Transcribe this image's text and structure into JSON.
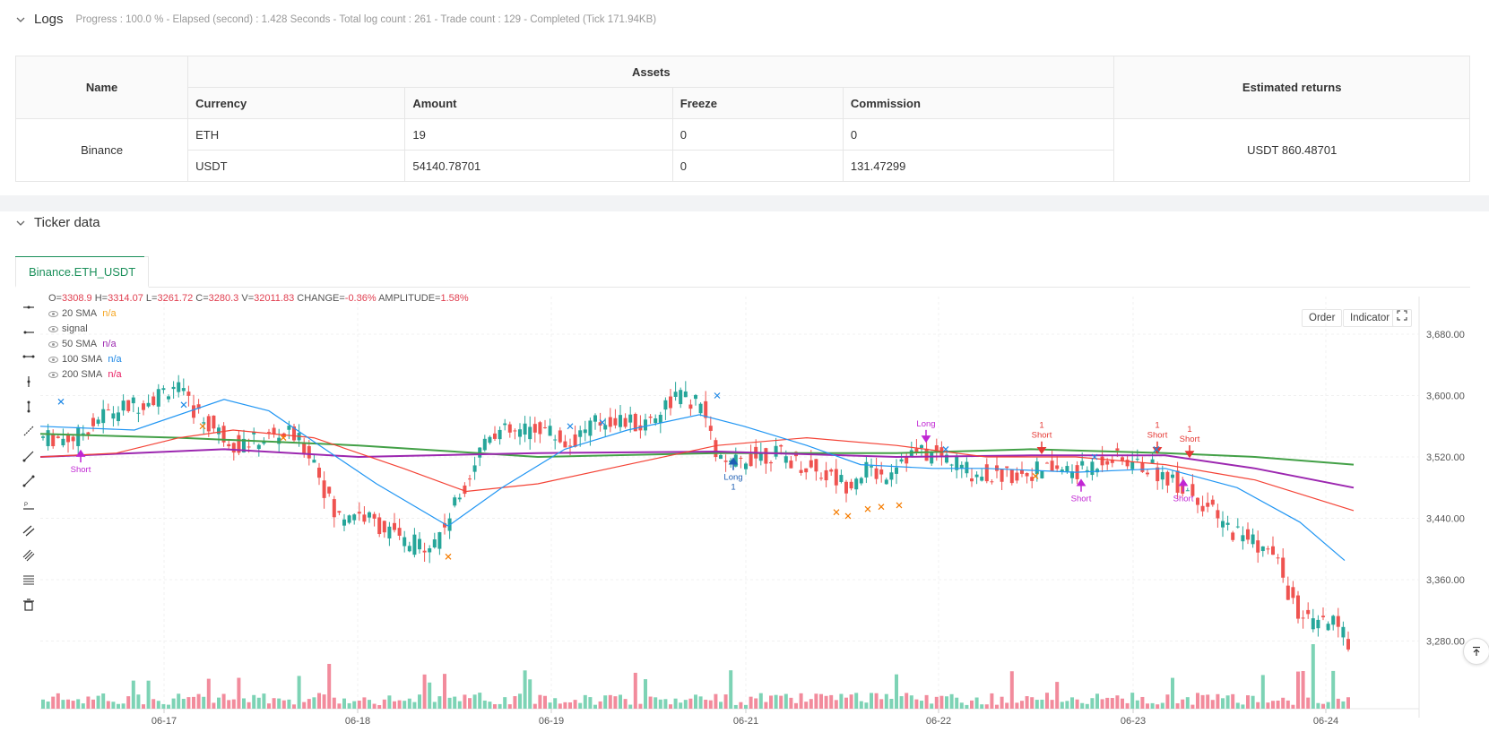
{
  "logs": {
    "title": "Logs",
    "info": "Progress : 100.0 % - Elapsed (second) : 1.428  Seconds - Total log count : 261 - Trade count : 129 - Completed (Tick 171.94KB)"
  },
  "assets_table": {
    "headers": {
      "name": "Name",
      "assets": "Assets",
      "estimated": "Estimated returns",
      "currency": "Currency",
      "amount": "Amount",
      "freeze": "Freeze",
      "commission": "Commission"
    },
    "exchange": "Binance",
    "rows": [
      {
        "currency": "ETH",
        "amount": "19",
        "freeze": "0",
        "commission": "0"
      },
      {
        "currency": "USDT",
        "amount": "54140.78701",
        "freeze": "0",
        "commission": "131.47299"
      }
    ],
    "estimated_returns": "USDT 860.48701"
  },
  "ticker": {
    "title": "Ticker data",
    "tab": "Binance.ETH_USDT",
    "buttons": {
      "order": "Order",
      "indicator": "Indicator"
    },
    "ohlc": {
      "o_label": "O=",
      "o": "3308.9",
      "h_label": "H=",
      "h": "3314.07",
      "l_label": "L=",
      "l": "3261.72",
      "c_label": "C=",
      "c": "3280.3",
      "v_label": "V=",
      "v": "32011.83",
      "change_label": "CHANGE=",
      "change": "-0.86%",
      "amp_label": "AMPLITUDE=",
      "amp": "1.58%"
    },
    "legend": [
      {
        "name": "20 SMA",
        "value": "n/a",
        "color": "#f5a623"
      },
      {
        "name": "signal",
        "value": "",
        "color": "#999999"
      },
      {
        "name": "50 SMA",
        "value": "n/a",
        "color": "#9c27b0"
      },
      {
        "name": "100 SMA",
        "value": "n/a",
        "color": "#1e88e5"
      },
      {
        "name": "200 SMA",
        "value": "n/a",
        "color": "#e91e63"
      }
    ]
  },
  "chart_data": {
    "type": "candlestick",
    "x_ticks": [
      "06-17",
      "06-18",
      "06-19",
      "06-21",
      "06-22",
      "06-23",
      "06-24"
    ],
    "y_ticks": [
      "3,680.00",
      "3,600.00",
      "3,520.00",
      "3,440.00",
      "3,360.00",
      "3,280.00"
    ],
    "ylim": [
      3200,
      3720
    ],
    "colors": {
      "up": "#26a69a",
      "down": "#ef5350",
      "sma20": "#2196f3",
      "sma50": "#f44336",
      "sma100": "#9c27b0",
      "sma200": "#43a047"
    },
    "signals": [
      {
        "label": "Short",
        "kind": "short"
      },
      {
        "label": "Long",
        "kind": "long",
        "qty": "1"
      },
      {
        "label": "Long",
        "kind": "long"
      },
      {
        "label": "Short",
        "kind": "exit",
        "qty": "1"
      },
      {
        "label": "Short",
        "kind": "short"
      },
      {
        "label": "Short",
        "kind": "exit",
        "qty": "1"
      },
      {
        "label": "Short",
        "kind": "exit",
        "qty": "1"
      },
      {
        "label": "Short",
        "kind": "short"
      }
    ]
  }
}
